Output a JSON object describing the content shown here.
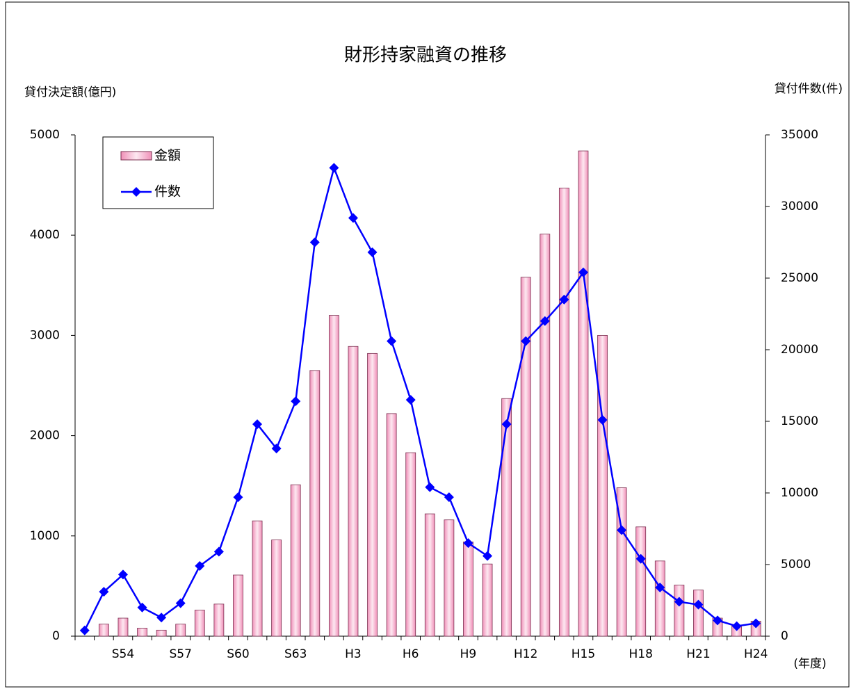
{
  "chart_data": {
    "type": "bar_line",
    "title": "財形持家融資の推移",
    "y_label": "貸付決定額(億円)",
    "y2_label": "貸付件数(件)",
    "x_label": "(年度)",
    "categories": [
      null,
      null,
      "S54",
      null,
      null,
      "S57",
      null,
      null,
      "S60",
      null,
      null,
      "S63",
      null,
      null,
      "H3",
      null,
      null,
      "H6",
      null,
      null,
      "H9",
      null,
      null,
      "H12",
      null,
      null,
      "H15",
      null,
      null,
      "H18",
      null,
      null,
      "H21",
      null,
      null,
      "H24"
    ],
    "series": [
      {
        "name": "金額",
        "type": "bar",
        "color": "#f7bcd6",
        "values": [
          0,
          120,
          180,
          80,
          60,
          120,
          260,
          320,
          610,
          1150,
          960,
          1510,
          2650,
          3200,
          2890,
          2820,
          2220,
          1830,
          1220,
          1160,
          940,
          720,
          2370,
          3580,
          4010,
          4470,
          4840,
          3000,
          1480,
          1090,
          750,
          510,
          460,
          180,
          110,
          150
        ]
      },
      {
        "name": "件数",
        "type": "line",
        "axis": "y2",
        "color": "#0000ff",
        "values": [
          400,
          3100,
          4300,
          2000,
          1300,
          2300,
          4900,
          5900,
          9700,
          14800,
          13100,
          16400,
          27500,
          32700,
          29200,
          26800,
          20600,
          16500,
          10400,
          9700,
          6500,
          5600,
          14800,
          20600,
          22000,
          23500,
          25400,
          15100,
          7400,
          5400,
          3400,
          2400,
          2200,
          1100,
          700,
          900
        ]
      }
    ],
    "ylim": [
      0,
      5000
    ],
    "yticks": [
      0,
      1000,
      2000,
      3000,
      4000,
      5000
    ],
    "y2lim": [
      0,
      35000
    ],
    "y2ticks": [
      0,
      5000,
      10000,
      15000,
      20000,
      25000,
      30000,
      35000
    ],
    "legend": "upper left",
    "grid": false
  }
}
